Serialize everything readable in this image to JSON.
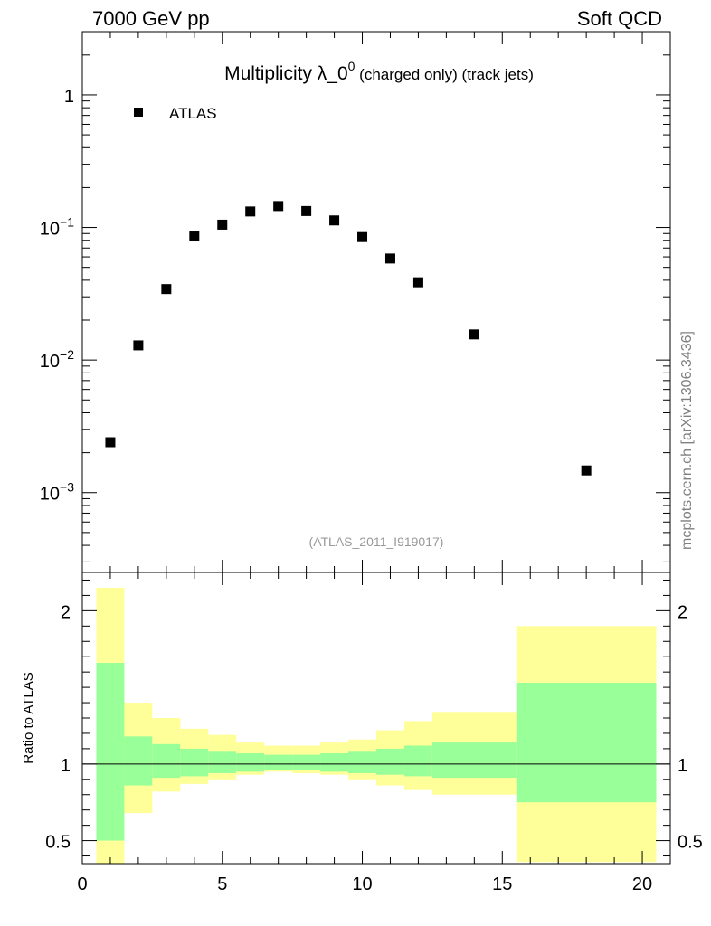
{
  "header": {
    "left": "7000 GeV pp",
    "right": "Soft QCD"
  },
  "side_label": "mcplots.cern.ch [arXiv:1306.3436]",
  "chart_data": [
    {
      "type": "scatter",
      "title_main": "Multiplicity λ_0",
      "title_sup": "0",
      "title_sub": " (charged only) (track jets)",
      "analysis_tag": "(ATLAS_2011_I919017)",
      "yscale": "log",
      "ylim": [
        0.00025,
        3.0
      ],
      "xlim": [
        0,
        21
      ],
      "legend": {
        "label": "ATLAS",
        "placement": "top-left"
      },
      "series": [
        {
          "name": "ATLAS",
          "x": [
            1,
            2,
            3,
            4,
            5,
            6,
            7,
            8,
            9,
            10,
            11,
            12,
            14,
            18
          ],
          "y": [
            0.0024,
            0.0129,
            0.0343,
            0.0855,
            0.105,
            0.132,
            0.145,
            0.133,
            0.113,
            0.0846,
            0.0583,
            0.0386,
            0.0156,
            0.00147
          ]
        }
      ],
      "y_ticks": [
        {
          "label": "10",
          "exp": "−3",
          "value": 0.001
        },
        {
          "label": "10",
          "exp": "−2",
          "value": 0.01
        },
        {
          "label": "10",
          "exp": "−1",
          "value": 0.1
        },
        {
          "label": "1",
          "exp": "",
          "value": 1
        }
      ]
    },
    {
      "type": "area",
      "ylabel": "Ratio to ATLAS",
      "xlabel": "",
      "ylim": [
        0.35,
        2.25
      ],
      "xlim": [
        0,
        21
      ],
      "reference_line": 1,
      "x_ticks": [
        {
          "label": "0",
          "value": 0
        },
        {
          "label": "5",
          "value": 5
        },
        {
          "label": "10",
          "value": 10
        },
        {
          "label": "15",
          "value": 15
        },
        {
          "label": "20",
          "value": 20
        }
      ],
      "y_ticks": [
        {
          "label": "0.5",
          "value": 0.5
        },
        {
          "label": "1",
          "value": 1
        },
        {
          "label": "2",
          "value": 2
        }
      ],
      "bins": [
        {
          "lo": 0.5,
          "hi": 1.5,
          "green": [
            0.5,
            1.66
          ],
          "yellow": [
            0.35,
            2.15
          ]
        },
        {
          "lo": 1.5,
          "hi": 2.5,
          "green": [
            0.86,
            1.18
          ],
          "yellow": [
            0.68,
            1.4
          ]
        },
        {
          "lo": 2.5,
          "hi": 3.5,
          "green": [
            0.91,
            1.13
          ],
          "yellow": [
            0.82,
            1.3
          ]
        },
        {
          "lo": 3.5,
          "hi": 4.5,
          "green": [
            0.92,
            1.1
          ],
          "yellow": [
            0.87,
            1.23
          ]
        },
        {
          "lo": 4.5,
          "hi": 5.5,
          "green": [
            0.94,
            1.08
          ],
          "yellow": [
            0.9,
            1.19
          ]
        },
        {
          "lo": 5.5,
          "hi": 6.5,
          "green": [
            0.95,
            1.07
          ],
          "yellow": [
            0.93,
            1.14
          ]
        },
        {
          "lo": 6.5,
          "hi": 7.5,
          "green": [
            0.96,
            1.06
          ],
          "yellow": [
            0.95,
            1.12
          ]
        },
        {
          "lo": 7.5,
          "hi": 8.5,
          "green": [
            0.96,
            1.06
          ],
          "yellow": [
            0.94,
            1.12
          ]
        },
        {
          "lo": 8.5,
          "hi": 9.5,
          "green": [
            0.95,
            1.07
          ],
          "yellow": [
            0.93,
            1.14
          ]
        },
        {
          "lo": 9.5,
          "hi": 10.5,
          "green": [
            0.94,
            1.08
          ],
          "yellow": [
            0.9,
            1.16
          ]
        },
        {
          "lo": 10.5,
          "hi": 11.5,
          "green": [
            0.93,
            1.1
          ],
          "yellow": [
            0.86,
            1.22
          ]
        },
        {
          "lo": 11.5,
          "hi": 12.5,
          "green": [
            0.92,
            1.12
          ],
          "yellow": [
            0.83,
            1.28
          ]
        },
        {
          "lo": 12.5,
          "hi": 15.5,
          "green": [
            0.91,
            1.14
          ],
          "yellow": [
            0.8,
            1.34
          ]
        },
        {
          "lo": 15.5,
          "hi": 20.5,
          "green": [
            0.75,
            1.53
          ],
          "yellow": [
            0.36,
            1.9
          ]
        }
      ]
    }
  ],
  "colors": {
    "green_band": "#99ff99",
    "yellow_band": "#ffff99",
    "marker": "#000000",
    "tag_text": "#999999",
    "side_text": "#808080"
  }
}
